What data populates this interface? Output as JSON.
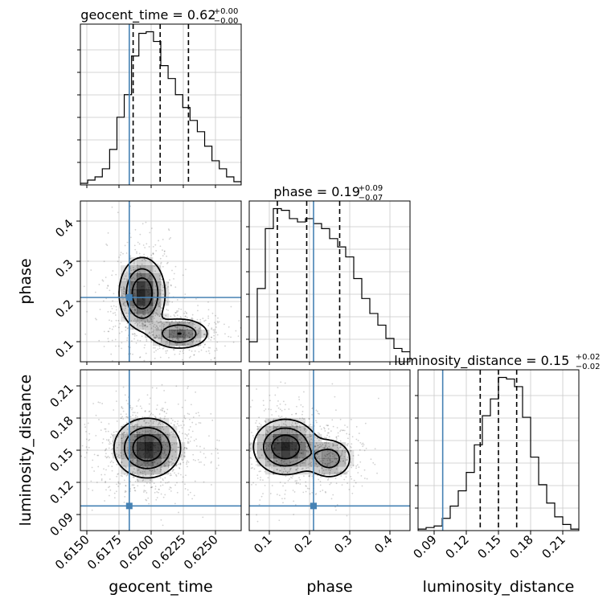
{
  "chart_data": {
    "type": "corner",
    "colors": {
      "truth": "#4682b4",
      "line": "#000000",
      "grid": "#c8c8c8",
      "density": "#000000"
    },
    "parameters": [
      {
        "name": "geocent_time",
        "range": [
          0.6145,
          0.627
        ],
        "ticks": [
          0.615,
          0.6175,
          0.62,
          0.6225,
          0.625
        ],
        "tick_labels": [
          "0.6150",
          "0.6175",
          "0.6200",
          "0.6225",
          "0.6250"
        ]
      },
      {
        "name": "phase",
        "range": [
          0.05,
          0.45
        ],
        "ticks": [
          0.1,
          0.2,
          0.3,
          0.4
        ],
        "tick_labels": [
          "0.1",
          "0.2",
          "0.3",
          "0.4"
        ]
      },
      {
        "name": "luminosity_distance",
        "range": [
          0.075,
          0.225
        ],
        "ticks": [
          0.09,
          0.12,
          0.15,
          0.18,
          0.21
        ],
        "tick_labels": [
          "0.09",
          "0.12",
          "0.15",
          "0.18",
          "0.21"
        ]
      }
    ],
    "truths": {
      "geocent_time": 0.6183,
      "phase": 0.21,
      "luminosity_distance": 0.098
    },
    "titles": [
      {
        "param": "geocent_time",
        "main": "geocent_time = 0.62",
        "plus": "+0.00",
        "minus": "−0.00"
      },
      {
        "param": "phase",
        "main": "phase = 0.19",
        "plus": "+0.09",
        "minus": "−0.07"
      },
      {
        "param": "luminosity_distance",
        "main": "luminosity_distance = 0.15",
        "plus": "+0.02",
        "minus": "−0.02"
      }
    ],
    "quantiles": {
      "geocent_time": [
        0.6186,
        0.6207,
        0.6229
      ],
      "phase": [
        0.12,
        0.193,
        0.275
      ],
      "luminosity_distance": [
        0.133,
        0.15,
        0.167
      ]
    },
    "histograms": {
      "geocent_time": {
        "edges_range": [
          0.6145,
          0.627
        ],
        "counts": [
          1,
          3,
          5,
          10,
          22,
          42,
          56,
          80,
          94,
          95,
          89,
          74,
          66,
          56,
          48,
          40,
          33,
          24,
          15,
          10,
          5,
          2
        ]
      },
      "phase": {
        "edges_range": [
          0.05,
          0.45
        ],
        "counts": [
          12,
          44,
          80,
          92,
          91,
          86,
          84,
          86,
          83,
          80,
          74,
          69,
          63,
          50,
          38,
          29,
          22,
          14,
          8,
          6
        ]
      },
      "luminosity_distance": {
        "edges_range": [
          0.075,
          0.225
        ],
        "counts": [
          1,
          2,
          3,
          8,
          16,
          26,
          38,
          56,
          75,
          86,
          100,
          99,
          94,
          74,
          48,
          30,
          18,
          9,
          4,
          1
        ]
      }
    },
    "density_2d": [
      {
        "x": "geocent_time",
        "y": "phase",
        "peaks": [
          {
            "x": 0.6193,
            "y": 0.22,
            "sx": 0.0009,
            "sy": 0.045,
            "w": 1.0
          },
          {
            "x": 0.6222,
            "y": 0.12,
            "sx": 0.0012,
            "sy": 0.02,
            "w": 0.7
          }
        ]
      },
      {
        "x": "geocent_time",
        "y": "luminosity_distance",
        "peaks": [
          {
            "x": 0.6197,
            "y": 0.152,
            "sx": 0.0013,
            "sy": 0.014,
            "w": 1.0
          }
        ]
      },
      {
        "x": "phase",
        "y": "luminosity_distance",
        "peaks": [
          {
            "x": 0.14,
            "y": 0.153,
            "sx": 0.04,
            "sy": 0.013,
            "w": 1.0
          },
          {
            "x": 0.25,
            "y": 0.142,
            "sx": 0.03,
            "sy": 0.01,
            "w": 0.55
          }
        ]
      }
    ]
  }
}
